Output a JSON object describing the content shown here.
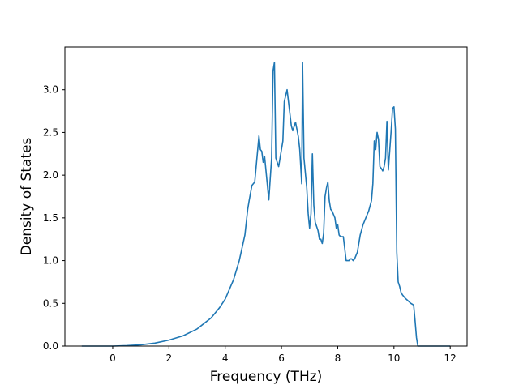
{
  "chart_data": {
    "type": "line",
    "title": "",
    "xlabel": "Frequency (THz)",
    "ylabel": "Density of States",
    "xlim": [
      -1.7,
      12.6
    ],
    "ylim": [
      0.0,
      3.5
    ],
    "xticks": [
      0,
      2,
      4,
      6,
      8,
      10,
      12
    ],
    "yticks": [
      0.0,
      0.5,
      1.0,
      1.5,
      2.0,
      2.5,
      3.0
    ],
    "xtick_labels": [
      "0",
      "2",
      "4",
      "6",
      "8",
      "10",
      "12"
    ],
    "ytick_labels": [
      "0.0",
      "0.5",
      "1.0",
      "1.5",
      "2.0",
      "2.5",
      "3.0"
    ],
    "grid": false,
    "line_color": "#1f77b4",
    "series": [
      {
        "x": [
          -1.1,
          -0.5,
          0.0,
          0.5,
          1.0,
          1.5,
          2.0,
          2.5,
          3.0,
          3.5,
          3.8,
          4.0,
          4.3,
          4.5,
          4.7,
          4.8,
          4.85,
          4.95,
          5.05,
          5.1,
          5.2,
          5.25,
          5.3,
          5.35,
          5.4,
          5.45,
          5.55,
          5.65,
          5.7,
          5.75,
          5.8,
          5.9,
          6.0,
          6.05,
          6.1,
          6.2,
          6.3,
          6.35,
          6.4,
          6.5,
          6.6,
          6.65,
          6.72,
          6.75,
          6.8,
          6.9,
          6.95,
          7.0,
          7.05,
          7.1,
          7.15,
          7.2,
          7.3,
          7.35,
          7.4,
          7.45,
          7.5,
          7.55,
          7.6,
          7.65,
          7.7,
          7.75,
          7.8,
          7.9,
          7.95,
          8.0,
          8.05,
          8.1,
          8.2,
          8.3,
          8.35,
          8.4,
          8.45,
          8.5,
          8.55,
          8.6,
          8.7,
          8.8,
          8.9,
          9.0,
          9.1,
          9.2,
          9.25,
          9.3,
          9.35,
          9.4,
          9.45,
          9.5,
          9.55,
          9.6,
          9.65,
          9.7,
          9.75,
          9.8,
          9.9,
          9.95,
          10.0,
          10.05,
          10.1,
          10.15,
          10.2,
          10.25,
          10.3,
          10.4,
          10.5,
          10.6,
          10.7,
          10.75,
          10.8,
          10.85,
          10.9,
          11.0,
          11.5,
          12.0
        ],
        "y": [
          0.0,
          0.0,
          0.0,
          0.005,
          0.015,
          0.035,
          0.07,
          0.12,
          0.2,
          0.33,
          0.45,
          0.55,
          0.78,
          1.0,
          1.3,
          1.6,
          1.7,
          1.88,
          1.92,
          2.1,
          2.46,
          2.3,
          2.28,
          2.15,
          2.22,
          2.05,
          1.71,
          2.2,
          3.22,
          3.32,
          2.2,
          2.1,
          2.3,
          2.4,
          2.86,
          3.0,
          2.72,
          2.58,
          2.52,
          2.62,
          2.45,
          2.3,
          1.9,
          3.32,
          2.2,
          1.85,
          1.55,
          1.38,
          1.55,
          2.25,
          1.65,
          1.45,
          1.35,
          1.25,
          1.25,
          1.2,
          1.32,
          1.75,
          1.85,
          1.92,
          1.7,
          1.6,
          1.58,
          1.5,
          1.38,
          1.42,
          1.3,
          1.28,
          1.28,
          1.0,
          1.0,
          1.0,
          1.02,
          1.02,
          1.0,
          1.02,
          1.1,
          1.3,
          1.42,
          1.5,
          1.58,
          1.7,
          1.9,
          2.4,
          2.3,
          2.5,
          2.42,
          2.1,
          2.08,
          2.05,
          2.1,
          2.2,
          2.63,
          2.06,
          2.52,
          2.78,
          2.8,
          2.54,
          1.1,
          0.75,
          0.7,
          0.63,
          0.6,
          0.56,
          0.53,
          0.5,
          0.48,
          0.3,
          0.1,
          0.0,
          0.0,
          0.0,
          0.0,
          0.0
        ]
      }
    ]
  }
}
